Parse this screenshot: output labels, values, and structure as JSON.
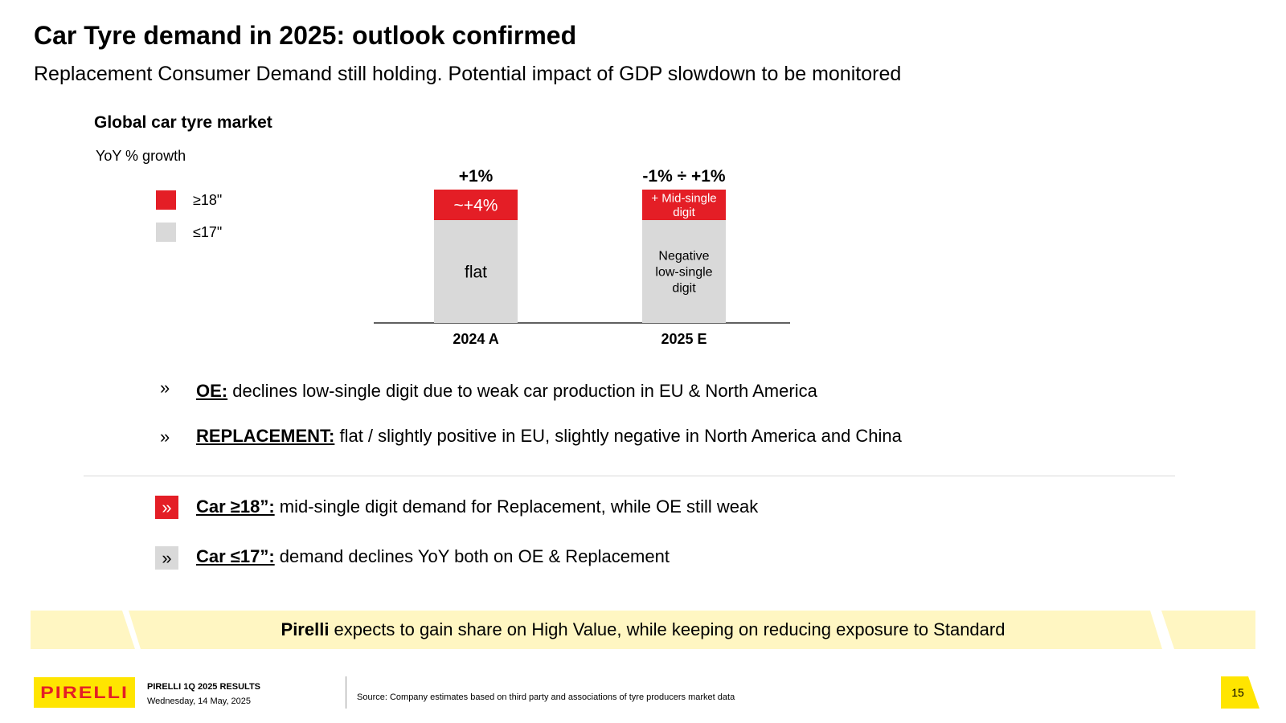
{
  "slide": {
    "title": "Car Tyre demand in 2025: outlook confirmed",
    "subtitle": "Replacement Consumer Demand still holding. Potential impact of GDP slowdown to be monitored"
  },
  "chart_data": {
    "type": "bar",
    "title": "Global car tyre market",
    "unit": "YoY % growth",
    "categories": [
      "2024 A",
      "2025 E"
    ],
    "totals": [
      "+1%",
      "-1% ÷ +1%"
    ],
    "series": [
      {
        "name": "≤17\"",
        "labels": [
          "flat",
          "Negative\nlow-single\ndigit"
        ],
        "color": "#d9d9d9"
      },
      {
        "name": "≥18\"",
        "labels": [
          "~+4%",
          "+ Mid-single\ndigit"
        ],
        "color": "#e41e26"
      }
    ],
    "legend_position": "left"
  },
  "bullets": [
    {
      "key": "OE:",
      "text": " declines low-single digit due to weak car production in EU & North America"
    },
    {
      "key": "REPLACEMENT:",
      "text": " flat / slightly positive in EU, slightly negative in North America and China"
    },
    {
      "key": "Car ≥18”:",
      "text": " mid-single digit demand for Replacement, while OE still weak"
    },
    {
      "key": "Car ≤17”:",
      "text": " demand declines YoY both on OE & Replacement"
    }
  ],
  "chevron_glyph": "»",
  "banner": {
    "bold": "Pirelli",
    "text": " expects to gain share on High Value, while keeping on reducing exposure to Standard"
  },
  "footer": {
    "logo_text": "PIRELLI",
    "report": "PIRELLI 1Q 2025 RESULTS",
    "date": "Wednesday, 14 May, 2025",
    "source": "Source: Company estimates based on third party and associations of tyre producers market data",
    "page": "15"
  },
  "colors": {
    "red": "#e41e26",
    "grey": "#d9d9d9",
    "yellow": "#FFE500",
    "banner_yellow": "#FFF6C2"
  }
}
